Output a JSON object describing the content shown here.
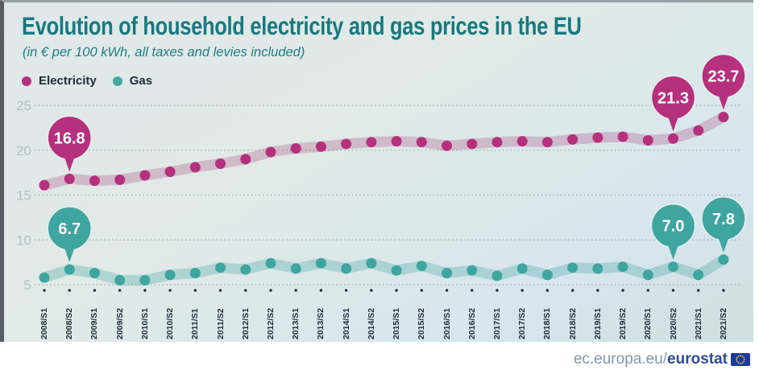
{
  "header": {
    "title": "Evolution of household electricity and gas prices in the EU",
    "subtitle": "(in € per 100 kWh, all taxes and levies included)"
  },
  "legend": [
    {
      "label": "Electricity",
      "color": "#b5307d"
    },
    {
      "label": "Gas",
      "color": "#45a8a3"
    }
  ],
  "footer": {
    "url_prefix": "ec.europa.eu/",
    "url_bold": "eurostat"
  },
  "colors": {
    "title_teal": "#17797f",
    "electricity": "#b5307d",
    "gas": "#3fa5a1",
    "axis_label_gray": "#b2bfc3",
    "x_label_navy": "#1e2c3a"
  },
  "chart_data": {
    "type": "line",
    "title": "Evolution of household electricity and gas prices in the EU",
    "subtitle": "(in € per 100 kWh, all taxes and levies included)",
    "grid": "horizontal dotted",
    "legend_position": "top-left",
    "ylim": [
      5,
      25
    ],
    "yticks": [
      25,
      20,
      15,
      10,
      5
    ],
    "categories": [
      "2008/S1",
      "2008/S2",
      "2009/S1",
      "2009/S2",
      "2010/S1",
      "2010/S2",
      "2011/S1",
      "2011/S2",
      "2012/S1",
      "2012/S2",
      "2013/S1",
      "2013/S2",
      "2014/S1",
      "2014/S2",
      "2015/S1",
      "2015/S2",
      "2016/S1",
      "2016/S2",
      "2017/S1",
      "2017/S2",
      "2018/S1",
      "2018/S2",
      "2019/S1",
      "2019/S2",
      "2020/S1",
      "2020/S2",
      "2021/S1",
      "2021/S2"
    ],
    "series": [
      {
        "name": "Electricity",
        "color": "#b5307d",
        "band_color": "rgba(164,64,126,0.28)",
        "values": [
          16.1,
          16.8,
          16.6,
          16.7,
          17.2,
          17.6,
          18.1,
          18.5,
          19.0,
          19.8,
          20.2,
          20.4,
          20.7,
          20.9,
          21.0,
          20.9,
          20.5,
          20.7,
          20.9,
          21.0,
          20.9,
          21.2,
          21.4,
          21.5,
          21.1,
          21.3,
          22.2,
          23.7
        ]
      },
      {
        "name": "Gas",
        "color": "#3fa5a1",
        "band_color": "rgba(70,166,162,0.32)",
        "values": [
          5.8,
          6.7,
          6.3,
          5.5,
          5.5,
          6.1,
          6.3,
          6.9,
          6.7,
          7.4,
          6.8,
          7.4,
          6.8,
          7.4,
          6.6,
          7.1,
          6.3,
          6.6,
          6.0,
          6.8,
          6.1,
          6.9,
          6.8,
          7.0,
          6.1,
          7.0,
          6.1,
          7.8
        ]
      }
    ],
    "callouts": [
      {
        "series": "Electricity",
        "category": "2008/S2",
        "label": "16.8"
      },
      {
        "series": "Electricity",
        "category": "2020/S2",
        "label": "21.3"
      },
      {
        "series": "Electricity",
        "category": "2021/S2",
        "label": "23.7"
      },
      {
        "series": "Gas",
        "category": "2008/S2",
        "label": "6.7"
      },
      {
        "series": "Gas",
        "category": "2020/S2",
        "label": "7.0"
      },
      {
        "series": "Gas",
        "category": "2021/S2",
        "label": "7.8"
      }
    ]
  }
}
